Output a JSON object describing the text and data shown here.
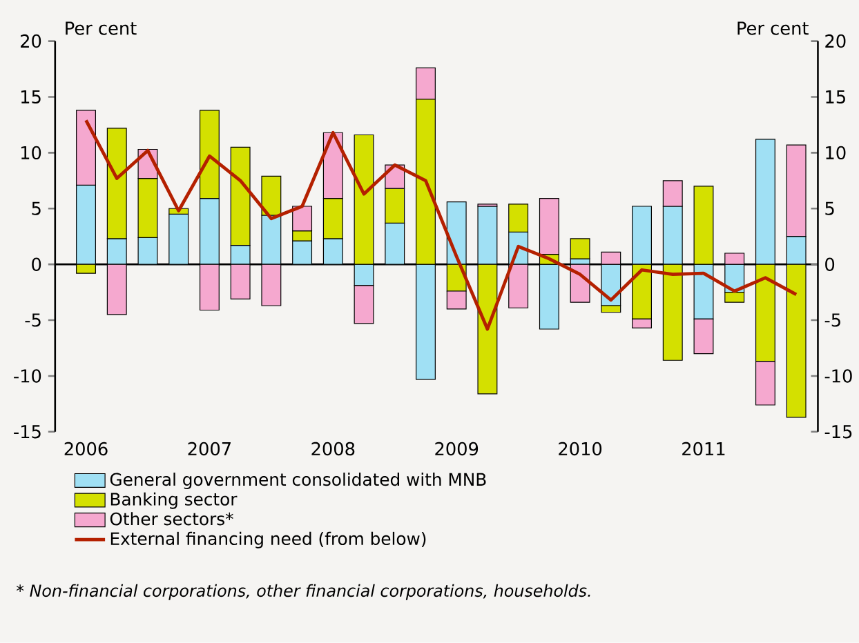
{
  "chart_data": {
    "type": "bar",
    "stacked": true,
    "categories": [
      "2006",
      null,
      null,
      null,
      "2007",
      null,
      null,
      null,
      "2008",
      null,
      null,
      null,
      "2009",
      null,
      null,
      null,
      "2010",
      null,
      null,
      null,
      "2011",
      null,
      null,
      null
    ],
    "series": [
      {
        "name": "General government consolidated with MNB",
        "color": "#a0e0f4",
        "values": [
          7.1,
          2.3,
          2.4,
          4.5,
          5.9,
          1.7,
          4.4,
          2.1,
          2.3,
          -1.9,
          3.7,
          -10.3,
          5.6,
          5.2,
          2.9,
          -5.8,
          0.5,
          -3.7,
          5.2,
          5.2,
          -4.9,
          -2.5,
          11.2,
          2.5
        ]
      },
      {
        "name": "Banking sector",
        "color": "#d4e000",
        "values": [
          -0.8,
          9.9,
          5.3,
          0.5,
          7.9,
          8.8,
          3.5,
          0.9,
          3.6,
          11.6,
          3.1,
          14.8,
          -2.4,
          -11.6,
          2.5,
          0.9,
          1.8,
          -0.6,
          -4.9,
          -8.6,
          7.0,
          -0.9,
          -8.7,
          -13.7
        ]
      },
      {
        "name": "Other sectors*",
        "color": "#f5a8cf",
        "values": [
          6.7,
          -4.5,
          2.6,
          null,
          -4.1,
          -3.1,
          -3.7,
          2.2,
          5.9,
          -3.4,
          2.1,
          2.8,
          -1.6,
          0.2,
          -3.9,
          5.0,
          -3.4,
          1.1,
          -0.8,
          2.3,
          -3.1,
          1.0,
          -3.9,
          8.2
        ]
      },
      {
        "name": "External financing need (from below)",
        "type": "line",
        "color": "#b42000",
        "values": [
          12.9,
          7.7,
          10.2,
          4.8,
          9.7,
          7.5,
          4.1,
          5.2,
          11.8,
          6.3,
          8.9,
          7.5,
          0.7,
          -5.8,
          1.6,
          0.5,
          -0.9,
          -3.2,
          -0.5,
          -0.9,
          -0.8,
          -2.4,
          -1.2,
          -2.7
        ]
      }
    ],
    "ylabel": "Per cent",
    "y2label": "Per cent",
    "ylim": [
      -15,
      20
    ],
    "yticks": [
      -15,
      -10,
      -5,
      0,
      5,
      10,
      15,
      20
    ],
    "y2lim": [
      -15,
      20
    ],
    "y2ticks": [
      -15,
      -10,
      -5,
      0,
      5,
      10,
      15,
      20
    ],
    "legend": "bottom",
    "marker": "none",
    "line_style": "solid",
    "annotations": [
      "* Non-financial corporations, other financial corporations, households."
    ]
  }
}
